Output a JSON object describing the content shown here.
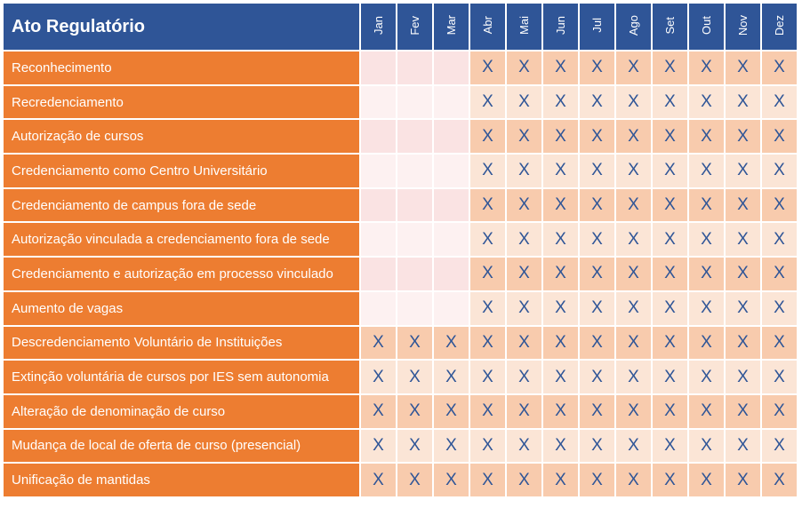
{
  "header": {
    "title": "Ato Regulatório",
    "months": [
      "Jan",
      "Fev",
      "Mar",
      "Abr",
      "Mai",
      "Jun",
      "Jul",
      "Ago",
      "Set",
      "Out",
      "Nov",
      "Dez"
    ]
  },
  "rows": [
    {
      "label": "Reconhecimento",
      "marks": [
        false,
        false,
        false,
        true,
        true,
        true,
        true,
        true,
        true,
        true,
        true,
        true
      ]
    },
    {
      "label": "Recredenciamento",
      "marks": [
        false,
        false,
        false,
        true,
        true,
        true,
        true,
        true,
        true,
        true,
        true,
        true
      ]
    },
    {
      "label": "Autorização de cursos",
      "marks": [
        false,
        false,
        false,
        true,
        true,
        true,
        true,
        true,
        true,
        true,
        true,
        true
      ]
    },
    {
      "label": "Credenciamento como Centro Universitário",
      "marks": [
        false,
        false,
        false,
        true,
        true,
        true,
        true,
        true,
        true,
        true,
        true,
        true
      ]
    },
    {
      "label": "Credenciamento de campus fora de sede",
      "marks": [
        false,
        false,
        false,
        true,
        true,
        true,
        true,
        true,
        true,
        true,
        true,
        true
      ]
    },
    {
      "label": "Autorização vinculada a credenciamento fora de sede",
      "marks": [
        false,
        false,
        false,
        true,
        true,
        true,
        true,
        true,
        true,
        true,
        true,
        true
      ]
    },
    {
      "label": "Credenciamento e autorização em processo vinculado",
      "marks": [
        false,
        false,
        false,
        true,
        true,
        true,
        true,
        true,
        true,
        true,
        true,
        true
      ]
    },
    {
      "label": "Aumento de vagas",
      "marks": [
        false,
        false,
        false,
        true,
        true,
        true,
        true,
        true,
        true,
        true,
        true,
        true
      ]
    },
    {
      "label": "Descredenciamento Voluntário de Instituições",
      "marks": [
        true,
        true,
        true,
        true,
        true,
        true,
        true,
        true,
        true,
        true,
        true,
        true
      ]
    },
    {
      "label": "Extinção voluntária de cursos por IES sem autonomia",
      "marks": [
        true,
        true,
        true,
        true,
        true,
        true,
        true,
        true,
        true,
        true,
        true,
        true
      ]
    },
    {
      "label": "Alteração de denominação de curso",
      "marks": [
        true,
        true,
        true,
        true,
        true,
        true,
        true,
        true,
        true,
        true,
        true,
        true
      ]
    },
    {
      "label": "Mudança de local de oferta de curso (presencial)",
      "marks": [
        true,
        true,
        true,
        true,
        true,
        true,
        true,
        true,
        true,
        true,
        true,
        true
      ]
    },
    {
      "label": "Unificação de mantidas",
      "marks": [
        true,
        true,
        true,
        true,
        true,
        true,
        true,
        true,
        true,
        true,
        true,
        true
      ]
    }
  ],
  "mark_symbol": "X",
  "colors": {
    "header_bg": "#2f5597",
    "label_bg": "#ed7d31",
    "mark_text": "#2f5597",
    "cell_odd": "#f8cbad",
    "cell_even": "#fbe5d6"
  }
}
